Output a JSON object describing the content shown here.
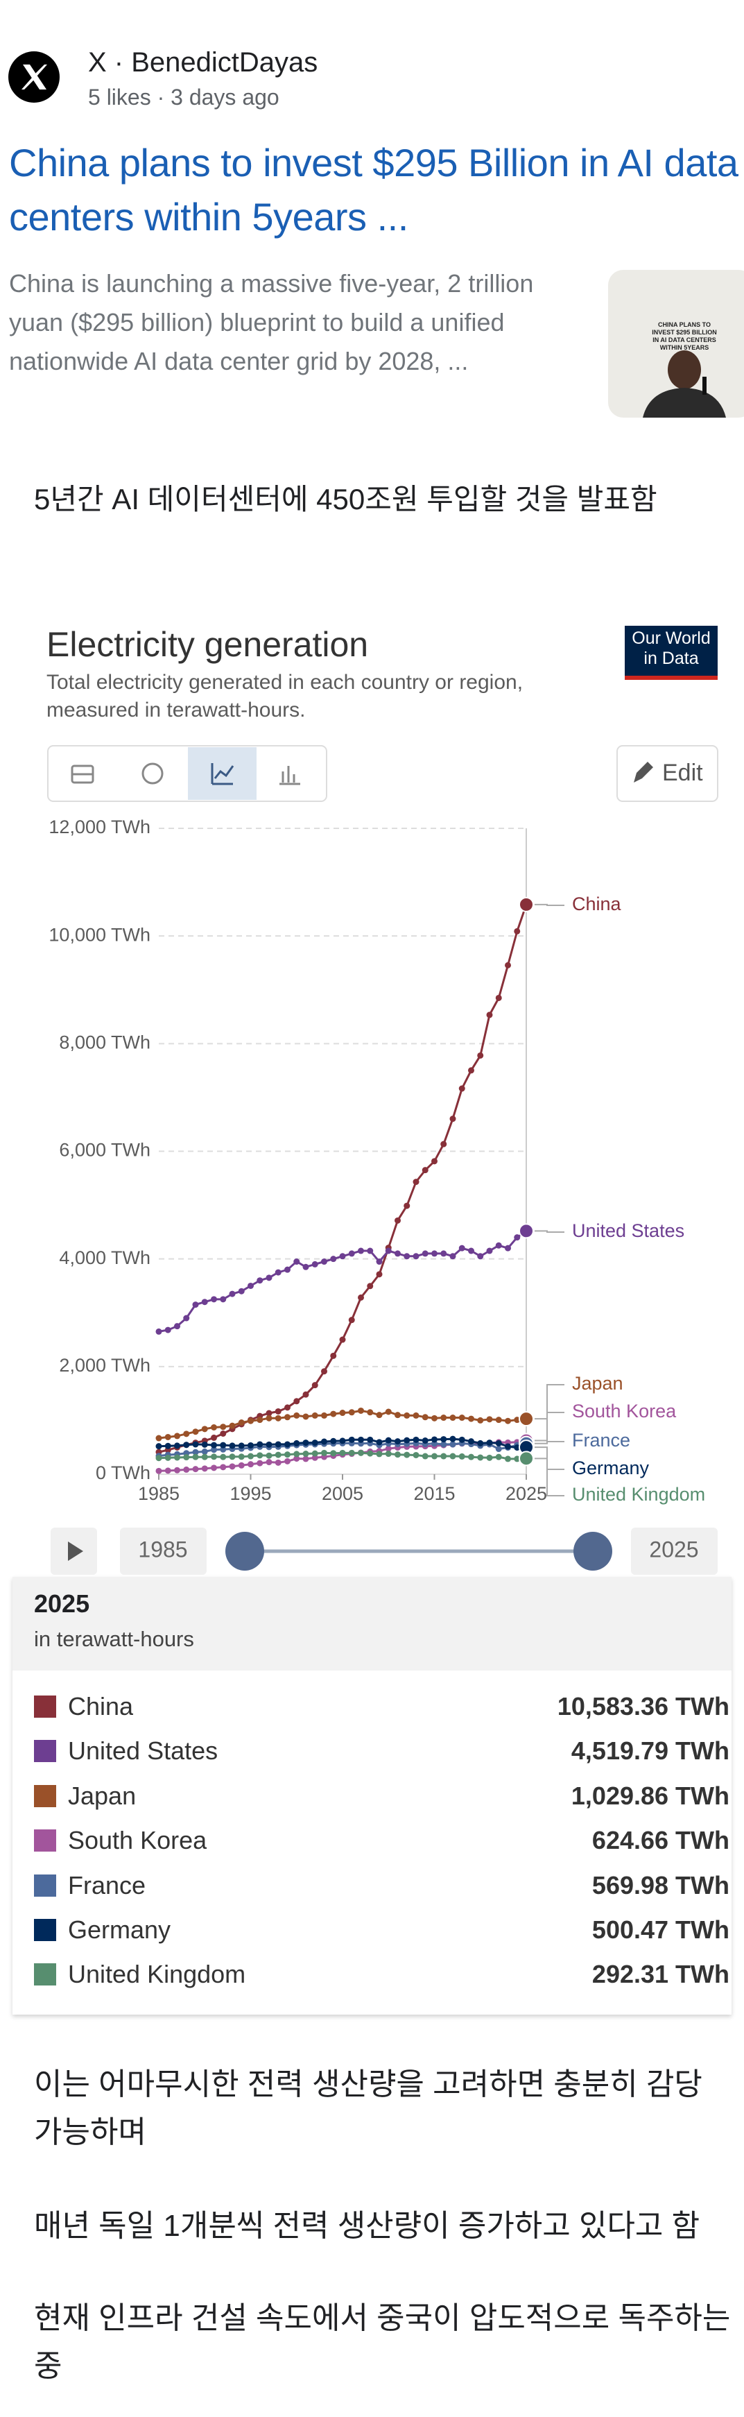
{
  "post": {
    "source": "X · BenedictDayas",
    "meta": "5 likes · 3 days ago",
    "headline": "China plans to invest $295 Billion in AI data centers within 5years ...",
    "description": "China is launching a massive five-year, 2 trillion yuan ($295 billion) blueprint to build a unified nationwide AI data center grid by 2028, ...",
    "thumbnail_text": "CHINA PLANS TO INVEST $295 BILLION IN AI DATA CENTERS WITHIN 5YEARS"
  },
  "intro": "5년간 AI 데이터센터에 450조원 투입할 것을 발표함",
  "paragraphs": [
    "이는 어마무시한 전력 생산량을 고려하면 충분히 감당 가능하며",
    "매년 독일 1개분씩 전력 생산량이 증가하고 있다고 함",
    "현재 인프라 건설 속도에서 중국이 압도적으로 독주하는 중"
  ],
  "chart_data": {
    "type": "line",
    "title": "Electricity generation",
    "subtitle": "Total electricity generated in each country or region, measured in terawatt-hours.",
    "logo": "Our World in Data",
    "edit_button": "Edit",
    "timeline": [
      1985,
      2025
    ],
    "x": [
      1985,
      1986,
      1987,
      1988,
      1989,
      1990,
      1991,
      1992,
      1993,
      1994,
      1995,
      1996,
      1997,
      1998,
      1999,
      2000,
      2001,
      2002,
      2003,
      2004,
      2005,
      2006,
      2007,
      2008,
      2009,
      2010,
      2011,
      2012,
      2013,
      2014,
      2015,
      2016,
      2017,
      2018,
      2019,
      2020,
      2021,
      2022,
      2023,
      2024,
      2025
    ],
    "xlim": [
      1985,
      2025
    ],
    "xticks": [
      1985,
      1995,
      2005,
      2015,
      2025
    ],
    "ylim": [
      0,
      12000
    ],
    "yticks": [
      {
        "value": 0,
        "label": "0 TWh"
      },
      {
        "value": 2000,
        "label": "2,000 TWh"
      },
      {
        "value": 4000,
        "label": "4,000 TWh"
      },
      {
        "value": 6000,
        "label": "6,000 TWh"
      },
      {
        "value": 8000,
        "label": "8,000 TWh"
      },
      {
        "value": 10000,
        "label": "10,000 TWh"
      },
      {
        "value": 12000,
        "label": "12,000 TWh"
      }
    ],
    "grid": true,
    "series": [
      {
        "name": "China",
        "color": "#883039",
        "values": [
          411,
          450,
          497,
          545,
          585,
          621,
          678,
          754,
          840,
          928,
          1008,
          1081,
          1134,
          1167,
          1239,
          1356,
          1480,
          1654,
          1911,
          2200,
          2500,
          2866,
          3282,
          3496,
          3714,
          4207,
          4713,
          4987,
          5432,
          5650,
          5815,
          6133,
          6604,
          7166,
          7503,
          7779,
          8534,
          8849,
          9456,
          10087,
          10583.36
        ]
      },
      {
        "name": "United States",
        "color": "#6d3e91",
        "values": [
          2650,
          2680,
          2750,
          2900,
          3150,
          3200,
          3250,
          3250,
          3350,
          3400,
          3500,
          3600,
          3650,
          3750,
          3800,
          3950,
          3850,
          3900,
          3950,
          4000,
          4050,
          4100,
          4150,
          4150,
          3950,
          4150,
          4100,
          4050,
          4050,
          4100,
          4100,
          4100,
          4050,
          4200,
          4150,
          4050,
          4150,
          4250,
          4200,
          4400,
          4519.79
        ]
      },
      {
        "name": "Japan",
        "color": "#9a5129",
        "values": [
          670,
          690,
          710,
          750,
          790,
          840,
          870,
          880,
          900,
          960,
          990,
          1010,
          1040,
          1040,
          1060,
          1090,
          1070,
          1090,
          1090,
          1120,
          1140,
          1150,
          1180,
          1150,
          1100,
          1160,
          1100,
          1090,
          1090,
          1060,
          1040,
          1050,
          1050,
          1050,
          1030,
          1000,
          1020,
          1010,
          990,
          1010,
          1029.86
        ]
      },
      {
        "name": "South Korea",
        "color": "#a2559c",
        "values": [
          60,
          66,
          74,
          85,
          95,
          105,
          118,
          131,
          144,
          164,
          185,
          205,
          225,
          215,
          240,
          290,
          285,
          306,
          322,
          342,
          365,
          380,
          400,
          420,
          430,
          475,
          495,
          510,
          515,
          520,
          525,
          540,
          553,
          570,
          563,
          552,
          577,
          594,
          588,
          595,
          624.66
        ]
      },
      {
        "name": "France",
        "color": "#4c6a9c",
        "values": [
          340,
          360,
          370,
          390,
          410,
          420,
          455,
          460,
          470,
          475,
          490,
          510,
          505,
          510,
          525,
          540,
          550,
          555,
          565,
          570,
          575,
          575,
          570,
          575,
          540,
          570,
          560,
          565,
          575,
          560,
          570,
          555,
          555,
          575,
          560,
          530,
          555,
          470,
          495,
          540,
          569.98
        ]
      },
      {
        "name": "Germany",
        "color": "#00295b",
        "values": [
          520,
          525,
          530,
          545,
          555,
          550,
          540,
          540,
          530,
          530,
          535,
          555,
          550,
          555,
          555,
          575,
          585,
          585,
          605,
          615,
          620,
          640,
          640,
          640,
          595,
          630,
          610,
          630,
          640,
          625,
          645,
          650,
          655,
          640,
          610,
          575,
          585,
          575,
          515,
          495,
          500.47
        ]
      },
      {
        "name": "United Kingdom",
        "color": "#578e6f",
        "values": [
          300,
          305,
          310,
          315,
          320,
          320,
          325,
          320,
          325,
          325,
          335,
          350,
          345,
          360,
          365,
          375,
          380,
          385,
          395,
          390,
          395,
          395,
          395,
          385,
          375,
          380,
          365,
          360,
          355,
          335,
          335,
          335,
          335,
          330,
          320,
          310,
          305,
          320,
          285,
          285,
          292.31
        ]
      }
    ]
  },
  "table": {
    "title": "2025",
    "subtitle": "in terawatt-hours",
    "rows": [
      [
        "China",
        "10,583.36 TWh"
      ],
      [
        "United States",
        "4,519.79 TWh"
      ],
      [
        "Japan",
        "1,029.86 TWh"
      ],
      [
        "South Korea",
        "624.66 TWh"
      ],
      [
        "France",
        "569.98 TWh"
      ],
      [
        "Germany",
        "500.47 TWh"
      ],
      [
        "United Kingdom",
        "292.31 TWh"
      ]
    ]
  }
}
